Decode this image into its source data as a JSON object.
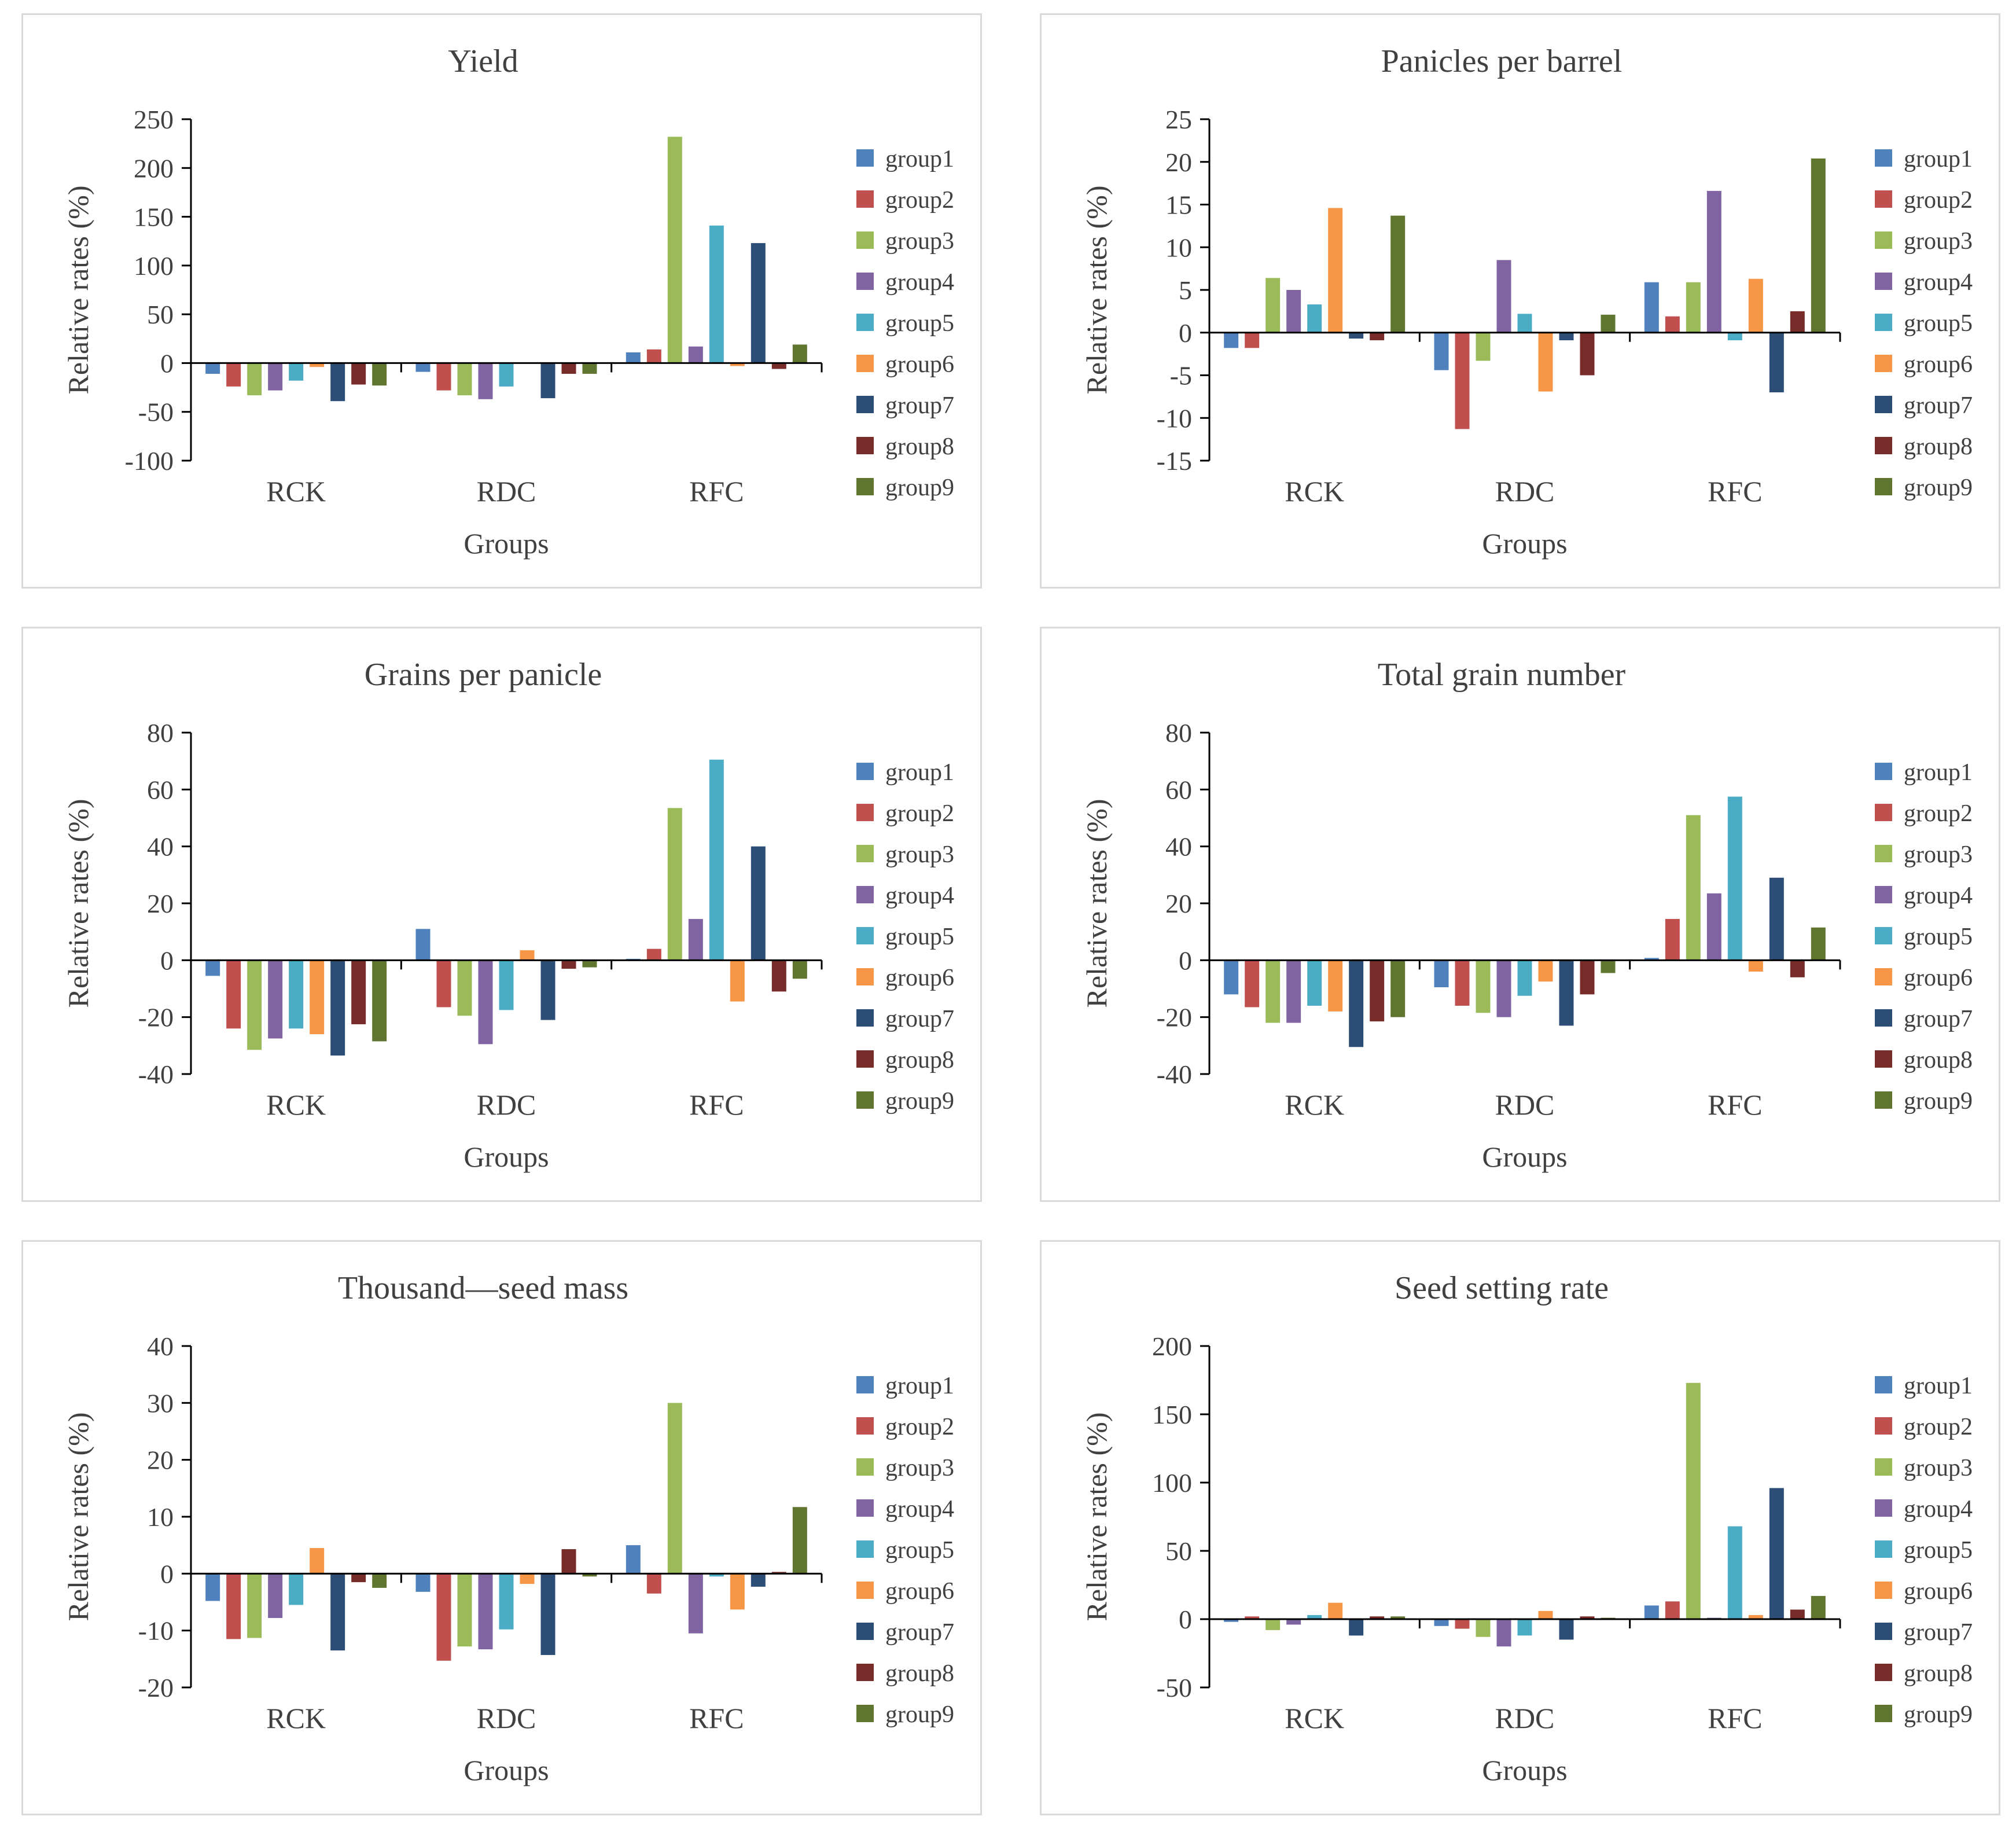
{
  "colors": {
    "group1": "#4f81bd",
    "group2": "#c0504d",
    "group3": "#9bbb59",
    "group4": "#8064a2",
    "group5": "#4bacc6",
    "group6": "#f79646",
    "group7": "#2c4d75",
    "group8": "#772c2a",
    "group9": "#5f7530"
  },
  "chart_data": [
    {
      "type": "bar",
      "title": "Yield",
      "xlabel": "Groups",
      "ylabel": "Relative rates (%)",
      "ylim": [
        -100,
        250
      ],
      "yticks": [
        250,
        200,
        150,
        100,
        50,
        0,
        -50,
        -100
      ],
      "categories": [
        "RCK",
        "RDC",
        "RFC"
      ],
      "legend": "right",
      "series": [
        {
          "name": "group1",
          "values": [
            -11,
            -9,
            11
          ]
        },
        {
          "name": "group2",
          "values": [
            -24,
            -28,
            14
          ]
        },
        {
          "name": "group3",
          "values": [
            -33,
            -33,
            232
          ]
        },
        {
          "name": "group4",
          "values": [
            -28,
            -37,
            17
          ]
        },
        {
          "name": "group5",
          "values": [
            -18,
            -24,
            141
          ]
        },
        {
          "name": "group6",
          "values": [
            -4,
            0,
            -3
          ]
        },
        {
          "name": "group7",
          "values": [
            -39,
            -36,
            123
          ]
        },
        {
          "name": "group8",
          "values": [
            -22,
            -11,
            -6
          ]
        },
        {
          "name": "group9",
          "values": [
            -23,
            -11,
            19
          ]
        }
      ]
    },
    {
      "type": "bar",
      "title": "Panicles per barrel",
      "xlabel": "Groups",
      "ylabel": "Relative rates (%)",
      "ylim": [
        -15,
        25
      ],
      "yticks": [
        25,
        20,
        15,
        10,
        5,
        0,
        -5,
        -10,
        -15
      ],
      "categories": [
        "RCK",
        "RDC",
        "RFC"
      ],
      "legend": "right",
      "series": [
        {
          "name": "group1",
          "values": [
            -1.8,
            -4.4,
            5.9
          ]
        },
        {
          "name": "group2",
          "values": [
            -1.8,
            -11.3,
            1.9
          ]
        },
        {
          "name": "group3",
          "values": [
            6.4,
            -3.3,
            5.9
          ]
        },
        {
          "name": "group4",
          "values": [
            5.0,
            8.5,
            16.6
          ]
        },
        {
          "name": "group5",
          "values": [
            3.3,
            2.2,
            -0.9
          ]
        },
        {
          "name": "group6",
          "values": [
            14.6,
            -6.9,
            6.3
          ]
        },
        {
          "name": "group7",
          "values": [
            -0.7,
            -0.9,
            -7.0
          ]
        },
        {
          "name": "group8",
          "values": [
            -0.9,
            -5.0,
            2.5
          ]
        },
        {
          "name": "group9",
          "values": [
            13.7,
            2.1,
            20.4
          ]
        }
      ]
    },
    {
      "type": "bar",
      "title": "Grains per panicle",
      "xlabel": "Groups",
      "ylabel": "Relative rates (%)",
      "ylim": [
        -40,
        80
      ],
      "yticks": [
        80,
        60,
        40,
        20,
        0,
        -20,
        -40
      ],
      "categories": [
        "RCK",
        "RDC",
        "RFC"
      ],
      "legend": "right",
      "series": [
        {
          "name": "group1",
          "values": [
            -5.5,
            11.0,
            0.5
          ]
        },
        {
          "name": "group2",
          "values": [
            -24,
            -16.5,
            4
          ]
        },
        {
          "name": "group3",
          "values": [
            -31.5,
            -19.5,
            53.5
          ]
        },
        {
          "name": "group4",
          "values": [
            -27.5,
            -29.5,
            14.5
          ]
        },
        {
          "name": "group5",
          "values": [
            -24,
            -17.5,
            70.5
          ]
        },
        {
          "name": "group6",
          "values": [
            -26,
            3.5,
            -14.5
          ]
        },
        {
          "name": "group7",
          "values": [
            -33.5,
            -21,
            40
          ]
        },
        {
          "name": "group8",
          "values": [
            -22.5,
            -3,
            -11
          ]
        },
        {
          "name": "group9",
          "values": [
            -28.5,
            -2.5,
            -6.5
          ]
        }
      ]
    },
    {
      "type": "bar",
      "title": "Total grain number",
      "xlabel": "Groups",
      "ylabel": "Relative rates (%)",
      "ylim": [
        -40,
        80
      ],
      "yticks": [
        80,
        60,
        40,
        20,
        0,
        -20,
        -40
      ],
      "categories": [
        "RCK",
        "RDC",
        "RFC"
      ],
      "legend": "right",
      "series": [
        {
          "name": "group1",
          "values": [
            -12,
            -9.5,
            0.8
          ]
        },
        {
          "name": "group2",
          "values": [
            -16.5,
            -16,
            14.5
          ]
        },
        {
          "name": "group3",
          "values": [
            -22,
            -18.5,
            51
          ]
        },
        {
          "name": "group4",
          "values": [
            -22,
            -20,
            23.5
          ]
        },
        {
          "name": "group5",
          "values": [
            -16,
            -12.5,
            57.5
          ]
        },
        {
          "name": "group6",
          "values": [
            -18,
            -7.5,
            -4
          ]
        },
        {
          "name": "group7",
          "values": [
            -30.5,
            -23,
            29
          ]
        },
        {
          "name": "group8",
          "values": [
            -21.5,
            -12,
            -6
          ]
        },
        {
          "name": "group9",
          "values": [
            -20,
            -4.5,
            11.5
          ]
        }
      ]
    },
    {
      "type": "bar",
      "title": "Thousand—seed mass",
      "xlabel": "Groups",
      "ylabel": "Relative rates (%)",
      "ylim": [
        -20,
        40
      ],
      "yticks": [
        40,
        30,
        20,
        10,
        0,
        -10,
        -20
      ],
      "categories": [
        "RCK",
        "RDC",
        "RFC"
      ],
      "legend": "right",
      "series": [
        {
          "name": "group1",
          "values": [
            -4.8,
            -3.2,
            5.0
          ]
        },
        {
          "name": "group2",
          "values": [
            -11.5,
            -15.3,
            -3.5
          ]
        },
        {
          "name": "group3",
          "values": [
            -11.3,
            -12.8,
            30.0
          ]
        },
        {
          "name": "group4",
          "values": [
            -7.8,
            -13.3,
            -10.5
          ]
        },
        {
          "name": "group5",
          "values": [
            -5.5,
            -9.8,
            -0.5
          ]
        },
        {
          "name": "group6",
          "values": [
            4.5,
            -1.8,
            -6.3
          ]
        },
        {
          "name": "group7",
          "values": [
            -13.5,
            -14.3,
            -2.3
          ]
        },
        {
          "name": "group8",
          "values": [
            -1.5,
            4.3,
            0.3
          ]
        },
        {
          "name": "group9",
          "values": [
            -2.5,
            -0.5,
            11.7
          ]
        }
      ]
    },
    {
      "type": "bar",
      "title": "Seed setting rate",
      "xlabel": "Groups",
      "ylabel": "Relative rates (%)",
      "ylim": [
        -50,
        200
      ],
      "yticks": [
        200,
        150,
        100,
        50,
        0,
        -50
      ],
      "categories": [
        "RCK",
        "RDC",
        "RFC"
      ],
      "legend": "right",
      "series": [
        {
          "name": "group1",
          "values": [
            -2,
            -5,
            10
          ]
        },
        {
          "name": "group2",
          "values": [
            2,
            -7,
            13
          ]
        },
        {
          "name": "group3",
          "values": [
            -8,
            -13,
            173
          ]
        },
        {
          "name": "group4",
          "values": [
            -4,
            -20,
            1
          ]
        },
        {
          "name": "group5",
          "values": [
            3,
            -12,
            68
          ]
        },
        {
          "name": "group6",
          "values": [
            12,
            6,
            3
          ]
        },
        {
          "name": "group7",
          "values": [
            -12,
            -15,
            96
          ]
        },
        {
          "name": "group8",
          "values": [
            2,
            2,
            7
          ]
        },
        {
          "name": "group9",
          "values": [
            2,
            1,
            17
          ]
        }
      ]
    }
  ]
}
